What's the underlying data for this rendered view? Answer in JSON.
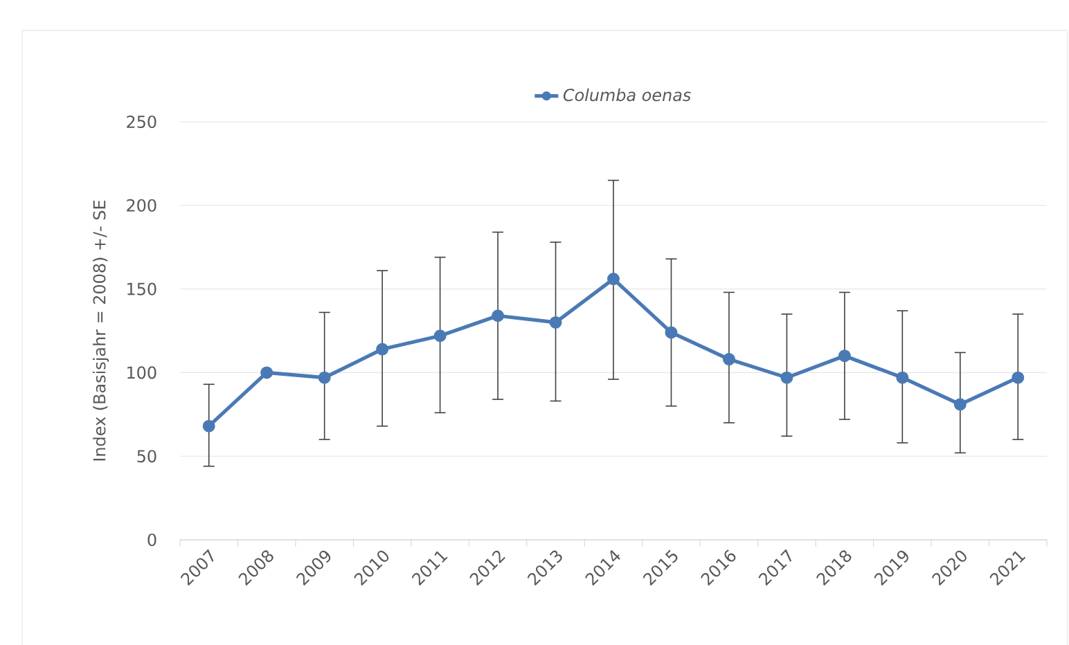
{
  "chart_data": {
    "type": "line",
    "ylabel": "Index (Basisjahr = 2008) +/- SE",
    "categories": [
      "2007",
      "2008",
      "2009",
      "2010",
      "2011",
      "2012",
      "2013",
      "2014",
      "2015",
      "2016",
      "2017",
      "2018",
      "2019",
      "2020",
      "2021"
    ],
    "series": [
      {
        "name": "Columba oenas",
        "color": "#4a7ab5",
        "values": [
          68,
          100,
          97,
          114,
          122,
          134,
          130,
          156,
          124,
          108,
          97,
          110,
          97,
          81,
          97
        ],
        "errors": [
          [
            44,
            93
          ],
          null,
          [
            60,
            136
          ],
          [
            68,
            161
          ],
          [
            76,
            169
          ],
          [
            84,
            184
          ],
          [
            83,
            178
          ],
          [
            96,
            215
          ],
          [
            80,
            168
          ],
          [
            70,
            148
          ],
          [
            62,
            135
          ],
          [
            72,
            148
          ],
          [
            58,
            137
          ],
          [
            52,
            112
          ],
          [
            60,
            135
          ]
        ]
      }
    ],
    "ylim": [
      0,
      250
    ],
    "yticks": [
      0,
      50,
      100,
      150,
      200,
      250
    ],
    "grid": "y",
    "legend": "top",
    "marker": "circle",
    "line_style": "solid"
  }
}
